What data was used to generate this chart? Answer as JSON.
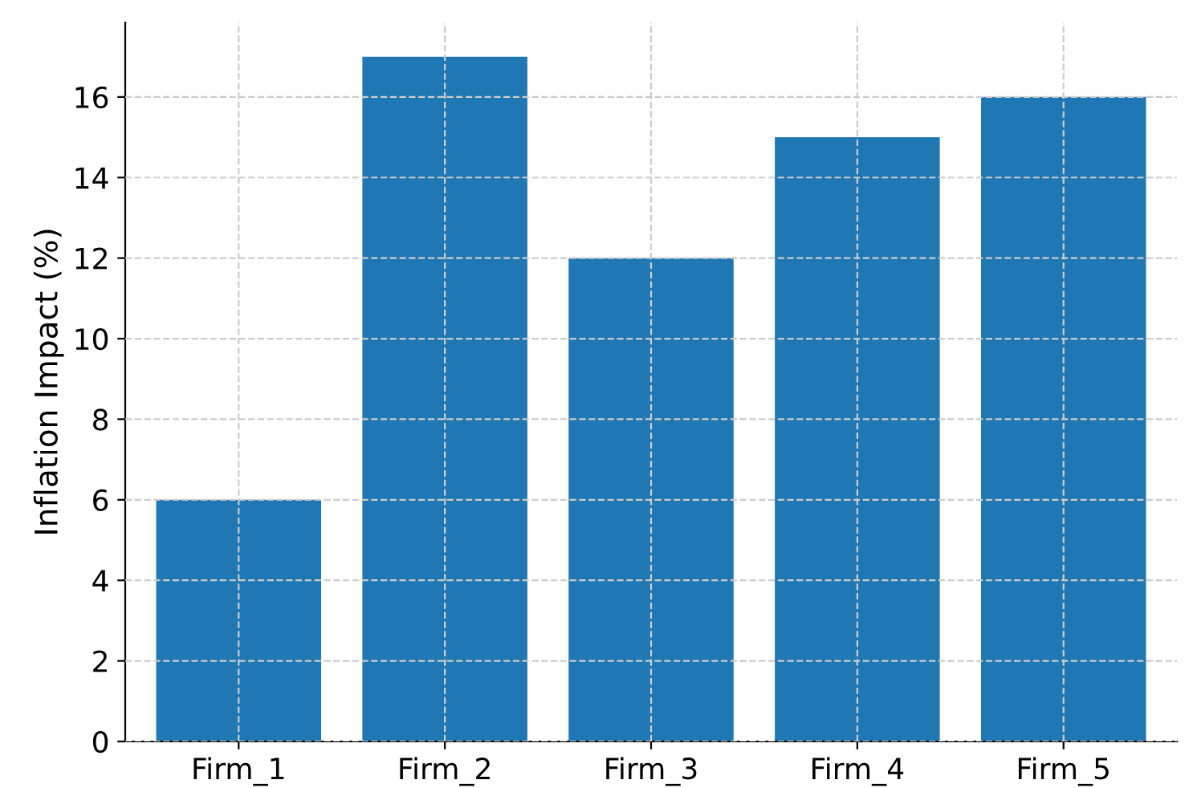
{
  "chart_data": {
    "type": "bar",
    "ylabel": "Inflation Impact (%)",
    "categories": [
      "Firm_1",
      "Firm_2",
      "Firm_3",
      "Firm_4",
      "Firm_5"
    ],
    "values": [
      6,
      17,
      12,
      15,
      16
    ],
    "color": "#1f77b4",
    "ylim": [
      0,
      17.85
    ],
    "yticks": [
      0,
      2,
      4,
      6,
      8,
      10,
      12,
      14,
      16
    ],
    "grid": true,
    "line_style": "dashed"
  }
}
